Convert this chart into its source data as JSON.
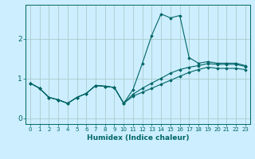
{
  "title": "",
  "xlabel": "Humidex (Indice chaleur)",
  "bg_color": "#cceeff",
  "grid_color": "#aacccc",
  "line_color": "#006666",
  "x_values": [
    0,
    1,
    2,
    3,
    4,
    5,
    6,
    7,
    8,
    9,
    10,
    11,
    12,
    13,
    14,
    15,
    16,
    17,
    18,
    19,
    20,
    21,
    22,
    23
  ],
  "ylim": [
    -0.15,
    2.85
  ],
  "xlim": [
    -0.5,
    23.5
  ],
  "series1": [
    0.88,
    0.75,
    0.52,
    0.46,
    0.37,
    0.52,
    0.62,
    0.82,
    0.8,
    0.77,
    0.37,
    0.72,
    1.38,
    2.08,
    2.62,
    2.52,
    2.58,
    1.52,
    1.38,
    1.42,
    1.38,
    1.38,
    1.38,
    1.32
  ],
  "series2": [
    0.88,
    0.75,
    0.52,
    0.46,
    0.37,
    0.52,
    0.62,
    0.82,
    0.8,
    0.77,
    0.37,
    0.6,
    0.75,
    0.88,
    1.0,
    1.13,
    1.22,
    1.28,
    1.32,
    1.37,
    1.35,
    1.35,
    1.35,
    1.3
  ],
  "series3": [
    0.88,
    0.75,
    0.52,
    0.46,
    0.37,
    0.52,
    0.62,
    0.82,
    0.8,
    0.77,
    0.37,
    0.55,
    0.65,
    0.75,
    0.85,
    0.95,
    1.05,
    1.15,
    1.22,
    1.28,
    1.25,
    1.25,
    1.25,
    1.22
  ],
  "yticks": [
    0,
    1,
    2
  ],
  "xtick_labels": [
    "0",
    "1",
    "2",
    "3",
    "4",
    "5",
    "6",
    "7",
    "8",
    "9",
    "10",
    "11",
    "12",
    "13",
    "14",
    "15",
    "16",
    "17",
    "18",
    "19",
    "20",
    "21",
    "22",
    "23"
  ]
}
